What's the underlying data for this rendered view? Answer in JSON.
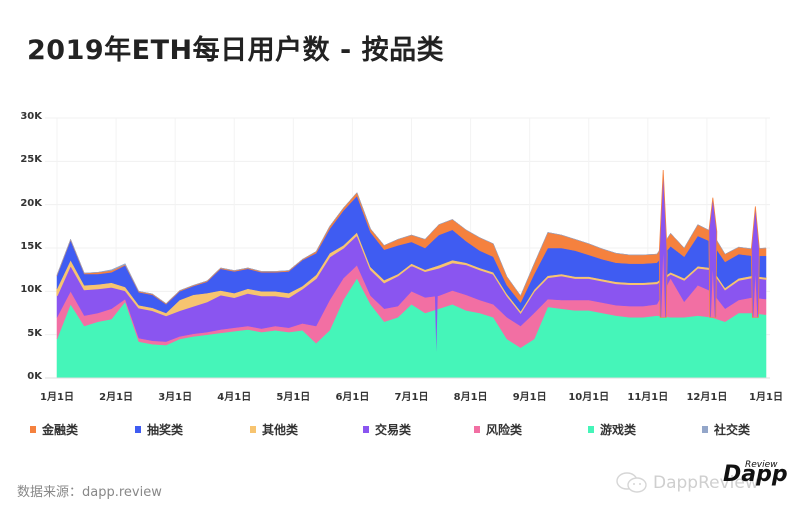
{
  "title": "2019年ETH每日用户数 - 按品类",
  "source": "数据来源：dapp.review",
  "watermark": {
    "text": "DappReview",
    "logo_main": "Dapp",
    "logo_sup": "Review"
  },
  "colors": {
    "金融类": "#f5813e",
    "抽奖类": "#3f5cf2",
    "其他类": "#f7c470",
    "交易类": "#8a55f0",
    "风险类": "#f26fa3",
    "游戏类": "#45f5b9",
    "社交类": "#93a6c9"
  },
  "legend": [
    {
      "label": "金融类",
      "color": "#f5813e"
    },
    {
      "label": "抽奖类",
      "color": "#3f5cf2"
    },
    {
      "label": "其他类",
      "color": "#f7c470"
    },
    {
      "label": "交易类",
      "color": "#8a55f0"
    },
    {
      "label": "风险类",
      "color": "#f26fa3"
    },
    {
      "label": "游戏类",
      "color": "#45f5b9"
    },
    {
      "label": "社交类",
      "color": "#93a6c9"
    }
  ],
  "chart_data": {
    "type": "area",
    "stacked": true,
    "title": "2019年ETH每日用户数 - 按品类",
    "xlabel": "",
    "ylabel": "",
    "ylim": [
      0,
      30000
    ],
    "yticks": [
      "0K",
      "5K",
      "10K",
      "15K",
      "20K",
      "25K",
      "30K"
    ],
    "xticks": [
      "1月1日",
      "2月1日",
      "3月1日",
      "4月1日",
      "5月1日",
      "6月1日",
      "7月1日",
      "8月1日",
      "9月1日",
      "10月1日",
      "11月1日",
      "12月1日",
      "1月1日"
    ],
    "grid": true,
    "legend_position": "bottom",
    "x_week": [
      0,
      1,
      2,
      3,
      4,
      5,
      6,
      7,
      8,
      9,
      10,
      11,
      12,
      13,
      14,
      15,
      16,
      17,
      18,
      19,
      20,
      21,
      22,
      23,
      24,
      25,
      26,
      27,
      28,
      29,
      30,
      31,
      32,
      33,
      34,
      35,
      36,
      37,
      38,
      39,
      40,
      41,
      42,
      43,
      44,
      45,
      46,
      47,
      48,
      49,
      50,
      51,
      52
    ],
    "series": [
      {
        "name": "游戏类",
        "values": [
          4.5,
          8.5,
          6.0,
          6.5,
          6.8,
          8.8,
          4.2,
          3.9,
          3.8,
          4.5,
          4.8,
          5.0,
          5.2,
          5.4,
          5.6,
          5.3,
          5.5,
          5.3,
          5.5,
          4.0,
          5.5,
          9.0,
          11.5,
          8.5,
          6.5,
          7.0,
          8.5,
          7.5,
          8.0,
          8.5,
          7.8,
          7.5,
          7.0,
          4.5,
          3.5,
          4.5,
          8.2,
          8.0,
          7.8,
          7.8,
          7.5,
          7.2,
          7.0,
          7.0,
          7.2,
          7.0,
          7.0,
          7.2,
          7.0,
          6.5,
          7.5,
          7.5,
          7.3
        ]
      },
      {
        "name": "风险类",
        "values": [
          2.5,
          1.5,
          1.2,
          1.0,
          1.2,
          0.3,
          0.4,
          0.4,
          0.4,
          0.3,
          0.3,
          0.3,
          0.4,
          0.4,
          0.4,
          0.4,
          0.5,
          0.5,
          0.8,
          2.0,
          3.5,
          2.5,
          1.5,
          1.0,
          1.5,
          1.3,
          1.5,
          1.8,
          1.5,
          1.6,
          1.8,
          1.5,
          1.5,
          2.5,
          2.5,
          3.0,
          0.9,
          1.0,
          1.2,
          1.2,
          1.2,
          1.2,
          1.3,
          1.3,
          1.3,
          4.5,
          1.8,
          3.5,
          3.0,
          1.5,
          1.5,
          1.8,
          1.8
        ]
      },
      {
        "name": "交易类",
        "values": [
          2.5,
          3.0,
          3.0,
          2.8,
          2.5,
          1.0,
          3.5,
          3.5,
          3.0,
          3.0,
          3.2,
          3.5,
          4.0,
          3.5,
          3.8,
          3.8,
          3.5,
          3.5,
          4.0,
          5.5,
          5.0,
          3.5,
          3.5,
          3.0,
          3.0,
          3.5,
          3.0,
          3.0,
          3.2,
          3.2,
          3.5,
          3.5,
          3.5,
          2.5,
          1.5,
          2.5,
          2.5,
          2.8,
          2.5,
          2.5,
          2.5,
          2.5,
          2.5,
          2.5,
          2.4,
          0.5,
          2.5,
          2.0,
          2.5,
          2.2,
          2.3,
          2.3,
          2.3
        ]
      },
      {
        "name": "其他类",
        "values": [
          0.8,
          0.6,
          0.5,
          0.5,
          0.5,
          0.4,
          0.3,
          0.3,
          0.3,
          1.2,
          1.3,
          1.0,
          0.5,
          0.5,
          0.5,
          0.5,
          0.5,
          0.5,
          0.3,
          0.4,
          0.4,
          0.3,
          0.3,
          0.3,
          0.3,
          0.2,
          0.2,
          0.2,
          0.3,
          0.3,
          0.2,
          0.2,
          0.2,
          0.2,
          0.2,
          0.2,
          0.2,
          0.2,
          0.2,
          0.2,
          0.2,
          0.2,
          0.2,
          0.2,
          0.2,
          0.2,
          0.2,
          0.2,
          0.2,
          0.2,
          0.2,
          0.2,
          0.2
        ]
      },
      {
        "name": "抽奖类",
        "values": [
          1.5,
          2.3,
          1.3,
          1.2,
          1.2,
          2.5,
          1.5,
          1.5,
          1.0,
          1.0,
          1.0,
          1.3,
          2.5,
          2.5,
          2.3,
          2.2,
          2.2,
          2.5,
          3.0,
          2.5,
          2.8,
          4.0,
          4.2,
          4.0,
          3.5,
          3.3,
          2.5,
          2.5,
          3.5,
          3.5,
          2.5,
          2.0,
          1.8,
          1.0,
          1.0,
          1.8,
          3.2,
          3.0,
          3.0,
          2.5,
          2.3,
          2.2,
          2.2,
          2.2,
          2.2,
          3.0,
          2.5,
          3.5,
          3.0,
          3.0,
          2.8,
          2.3,
          2.5
        ]
      },
      {
        "name": "金融类",
        "values": [
          0.1,
          0.1,
          0.1,
          0.2,
          0.2,
          0.1,
          0.1,
          0.1,
          0.1,
          0.1,
          0.1,
          0.1,
          0.1,
          0.1,
          0.1,
          0.1,
          0.1,
          0.1,
          0.1,
          0.2,
          0.3,
          0.3,
          0.4,
          0.4,
          0.5,
          0.7,
          0.8,
          1.0,
          1.2,
          1.2,
          1.3,
          1.5,
          1.5,
          1.0,
          0.8,
          1.2,
          1.8,
          1.5,
          1.3,
          1.3,
          1.2,
          1.1,
          1.0,
          1.0,
          1.0,
          1.5,
          1.0,
          1.3,
          1.2,
          0.9,
          0.8,
          0.8,
          0.9
        ]
      },
      {
        "name": "社交类",
        "values": [
          0,
          0,
          0,
          0,
          0.1,
          0.1,
          0,
          0,
          0,
          0,
          0,
          0,
          0,
          0,
          0,
          0,
          0,
          0,
          0,
          0,
          0,
          0,
          0,
          0,
          0,
          0,
          0,
          0,
          0,
          0,
          0,
          0,
          0,
          0,
          0,
          0,
          0,
          0,
          0,
          0,
          0,
          0,
          0,
          0,
          0,
          0,
          0,
          0,
          0,
          0,
          0,
          0,
          0
        ]
      }
    ],
    "spikes": [
      {
        "approx_date": "7月中旬",
        "type": "dip",
        "series": "游戏类",
        "low_value_k": 3.0
      },
      {
        "approx_date": "11月下旬",
        "type": "spike",
        "total_k": 24.0
      },
      {
        "approx_date": "12月初",
        "type": "spike",
        "total_k": 20.8
      },
      {
        "approx_date": "12月下旬",
        "type": "spike",
        "total_k": 19.8
      }
    ],
    "units": "thousands of users (K)"
  }
}
